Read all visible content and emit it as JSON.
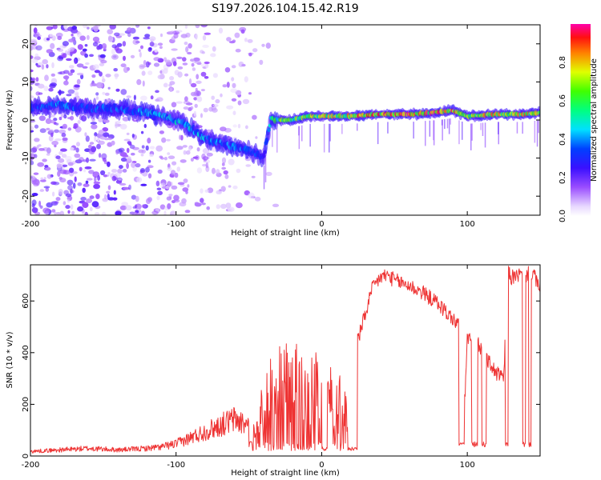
{
  "title": "S197.2026.104.15.42.R19",
  "chart_data": [
    {
      "type": "heatmap",
      "title": "S197.2026.104.15.42.R19",
      "xlabel": "Height of straight line (km)",
      "ylabel": "Frequency (Hz)",
      "xlim": [
        -200,
        150
      ],
      "ylim": [
        -25,
        25
      ],
      "xticks": [
        -200,
        -100,
        0,
        100
      ],
      "yticks": [
        -20,
        -10,
        0,
        10,
        20
      ],
      "colorbar": {
        "label": "Normalized spectral amplitude",
        "range": [
          0,
          1
        ],
        "ticks": [
          "0.0",
          "0.2",
          "0.4",
          "0.6",
          "0.8"
        ]
      },
      "ridge": {
        "x": [
          -200,
          -180,
          -160,
          -140,
          -120,
          -110,
          -100,
          -90,
          -80,
          -70,
          -60,
          -50,
          -40,
          -35,
          -30,
          -20,
          -10,
          0,
          20,
          40,
          60,
          80,
          90,
          100,
          120,
          140,
          150
        ],
        "y": [
          3,
          4,
          3,
          3,
          2,
          1,
          0,
          -2,
          -5,
          -6,
          -7,
          -8,
          -10,
          0,
          0,
          0,
          1,
          1,
          1,
          1.5,
          1.5,
          2,
          2.5,
          1,
          1.5,
          1.5,
          2
        ],
        "intensity": [
          0.3,
          0.4,
          0.35,
          0.35,
          0.4,
          0.45,
          0.45,
          0.45,
          0.4,
          0.4,
          0.4,
          0.35,
          0.3,
          0.5,
          0.6,
          0.65,
          0.65,
          0.7,
          0.75,
          0.8,
          0.85,
          0.85,
          0.8,
          0.7,
          0.75,
          0.75,
          0.7
        ]
      }
    },
    {
      "type": "line",
      "xlabel": "Height of straight line (km)",
      "ylabel": "SNR (10 * v/v)",
      "xlim": [
        -200,
        150
      ],
      "ylim": [
        0,
        740
      ],
      "xticks": [
        -200,
        -100,
        0,
        100
      ],
      "yticks": [
        0,
        200,
        400,
        600
      ],
      "color": "#ee3333",
      "series": [
        {
          "name": "SNR",
          "x": [
            -200,
            -180,
            -160,
            -140,
            -120,
            -110,
            -100,
            -90,
            -80,
            -70,
            -60,
            -50,
            -45,
            -40,
            -35,
            -30,
            -25,
            -20,
            -15,
            -10,
            -5,
            0,
            5,
            10,
            15,
            20,
            25,
            30,
            35,
            40,
            45,
            50,
            60,
            70,
            80,
            90,
            95,
            97,
            100,
            110,
            115,
            120,
            125,
            128,
            130,
            135,
            140,
            145,
            150
          ],
          "y": [
            15,
            20,
            25,
            20,
            25,
            30,
            40,
            60,
            80,
            100,
            120,
            100,
            120,
            250,
            320,
            370,
            380,
            360,
            370,
            380,
            350,
            330,
            300,
            280,
            270,
            260,
            450,
            550,
            650,
            690,
            700,
            680,
            660,
            630,
            590,
            530,
            500,
            40,
            460,
            420,
            360,
            320,
            300,
            720,
            690,
            700,
            700,
            710,
            640
          ]
        }
      ]
    }
  ]
}
